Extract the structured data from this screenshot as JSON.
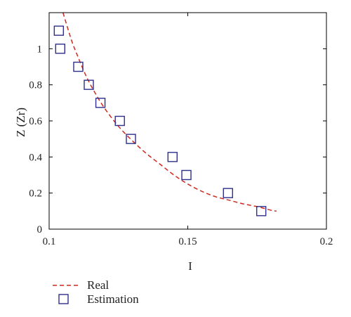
{
  "chart_data": {
    "type": "scatter",
    "xlabel": "I",
    "ylabel": "Z (Zr)",
    "xlim": [
      0.1,
      0.2
    ],
    "ylim": [
      0,
      1.2
    ],
    "x_ticks": [
      0.1,
      0.15,
      0.2
    ],
    "x_tick_labels": [
      "0.1",
      "0.15",
      "0.2"
    ],
    "y_ticks": [
      0,
      0.2,
      0.4,
      0.6,
      0.8,
      1.0
    ],
    "y_tick_labels": [
      "0",
      "0.2",
      "0.4",
      "0.6",
      "0.8",
      "1"
    ],
    "grid": false,
    "legend_position": "bottom-left",
    "series": [
      {
        "name": "Real",
        "kind": "line",
        "style": "dashed",
        "color": "#cc2a1e",
        "x": [
          0.105,
          0.108,
          0.11,
          0.113,
          0.116,
          0.12,
          0.125,
          0.13,
          0.135,
          0.14,
          0.145,
          0.15,
          0.155,
          0.16,
          0.165,
          0.17,
          0.175,
          0.18,
          0.182
        ],
        "y": [
          1.2,
          1.05,
          0.97,
          0.86,
          0.77,
          0.67,
          0.57,
          0.49,
          0.42,
          0.36,
          0.3,
          0.25,
          0.21,
          0.18,
          0.16,
          0.14,
          0.125,
          0.105,
          0.1
        ]
      },
      {
        "name": "Estimation",
        "kind": "scatter",
        "marker": "square",
        "color": "#2e2e8c",
        "x": [
          0.1035,
          0.104,
          0.1105,
          0.1143,
          0.1185,
          0.1255,
          0.1295,
          0.1445,
          0.1495,
          0.1645,
          0.1765
        ],
        "y": [
          1.1,
          1.0,
          0.9,
          0.8,
          0.7,
          0.6,
          0.5,
          0.4,
          0.3,
          0.2,
          0.1
        ]
      }
    ]
  }
}
